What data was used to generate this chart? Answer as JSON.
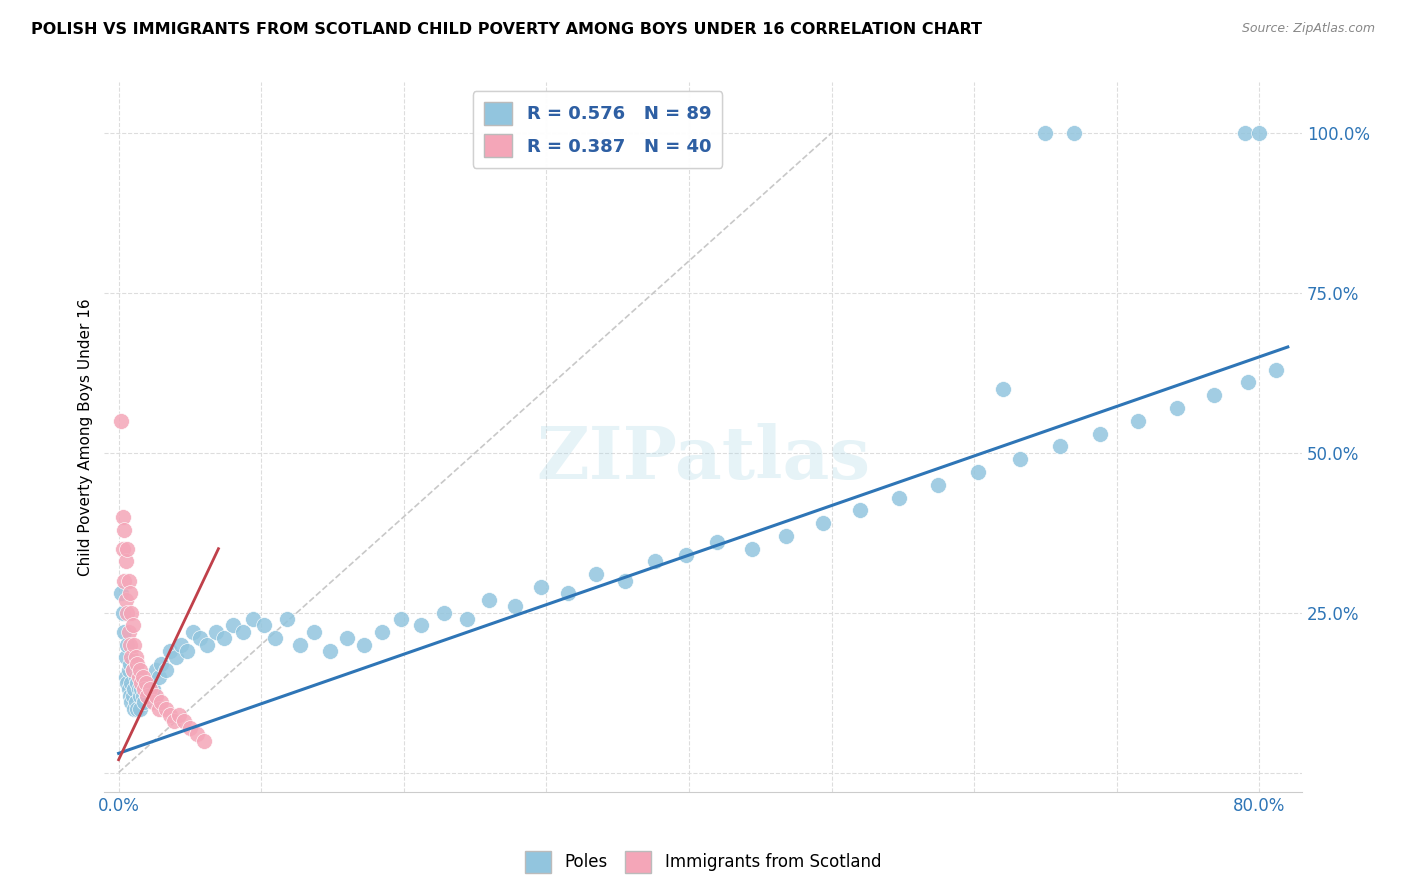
{
  "title": "POLISH VS IMMIGRANTS FROM SCOTLAND CHILD POVERTY AMONG BOYS UNDER 16 CORRELATION CHART",
  "source": "Source: ZipAtlas.com",
  "ylabel_label": "Child Poverty Among Boys Under 16",
  "x_tick_pos": [
    0.0,
    0.1,
    0.2,
    0.3,
    0.4,
    0.5,
    0.6,
    0.7,
    0.8
  ],
  "x_tick_labels": [
    "0.0%",
    "",
    "",
    "",
    "",
    "",
    "",
    "",
    "80.0%"
  ],
  "y_tick_pos": [
    0.0,
    0.25,
    0.5,
    0.75,
    1.0
  ],
  "y_tick_labels": [
    "",
    "25.0%",
    "50.0%",
    "75.0%",
    "100.0%"
  ],
  "poles_R": 0.576,
  "poles_N": 89,
  "scotland_R": 0.387,
  "scotland_N": 40,
  "poles_color": "#92C5DE",
  "poles_line_color": "#2E75B6",
  "scotland_color": "#F4A6B8",
  "scotland_line_color": "#C0404A",
  "legend_text_color": "#2E5FA3",
  "watermark_text": "ZIPatlas",
  "poles_x": [
    0.002,
    0.003,
    0.004,
    0.005,
    0.005,
    0.006,
    0.006,
    0.007,
    0.007,
    0.008,
    0.008,
    0.009,
    0.009,
    0.01,
    0.01,
    0.011,
    0.011,
    0.012,
    0.012,
    0.013,
    0.013,
    0.014,
    0.015,
    0.015,
    0.016,
    0.017,
    0.018,
    0.019,
    0.02,
    0.022,
    0.024,
    0.026,
    0.028,
    0.03,
    0.033,
    0.036,
    0.04,
    0.044,
    0.048,
    0.052,
    0.057,
    0.062,
    0.068,
    0.074,
    0.08,
    0.087,
    0.094,
    0.102,
    0.11,
    0.118,
    0.127,
    0.137,
    0.148,
    0.16,
    0.172,
    0.185,
    0.198,
    0.212,
    0.228,
    0.244,
    0.26,
    0.278,
    0.296,
    0.315,
    0.335,
    0.355,
    0.376,
    0.398,
    0.42,
    0.444,
    0.468,
    0.494,
    0.52,
    0.547,
    0.575,
    0.603,
    0.632,
    0.66,
    0.688,
    0.715,
    0.742,
    0.768,
    0.792,
    0.812,
    0.62,
    0.65,
    0.67,
    0.79,
    0.8
  ],
  "poles_y": [
    0.28,
    0.25,
    0.22,
    0.18,
    0.15,
    0.2,
    0.14,
    0.16,
    0.13,
    0.17,
    0.12,
    0.14,
    0.11,
    0.16,
    0.12,
    0.13,
    0.1,
    0.15,
    0.11,
    0.14,
    0.1,
    0.13,
    0.12,
    0.1,
    0.13,
    0.12,
    0.11,
    0.13,
    0.12,
    0.14,
    0.13,
    0.16,
    0.15,
    0.17,
    0.16,
    0.19,
    0.18,
    0.2,
    0.19,
    0.22,
    0.21,
    0.2,
    0.22,
    0.21,
    0.23,
    0.22,
    0.24,
    0.23,
    0.21,
    0.24,
    0.2,
    0.22,
    0.19,
    0.21,
    0.2,
    0.22,
    0.24,
    0.23,
    0.25,
    0.24,
    0.27,
    0.26,
    0.29,
    0.28,
    0.31,
    0.3,
    0.33,
    0.34,
    0.36,
    0.35,
    0.37,
    0.39,
    0.41,
    0.43,
    0.45,
    0.47,
    0.49,
    0.51,
    0.53,
    0.55,
    0.57,
    0.59,
    0.61,
    0.63,
    0.6,
    1.0,
    1.0,
    1.0,
    1.0
  ],
  "scotland_x": [
    0.002,
    0.003,
    0.003,
    0.004,
    0.004,
    0.005,
    0.005,
    0.006,
    0.006,
    0.007,
    0.007,
    0.008,
    0.008,
    0.009,
    0.009,
    0.01,
    0.01,
    0.011,
    0.012,
    0.013,
    0.014,
    0.015,
    0.016,
    0.017,
    0.018,
    0.019,
    0.02,
    0.022,
    0.024,
    0.026,
    0.028,
    0.03,
    0.033,
    0.036,
    0.039,
    0.042,
    0.046,
    0.05,
    0.055,
    0.06
  ],
  "scotland_y": [
    0.55,
    0.4,
    0.35,
    0.38,
    0.3,
    0.33,
    0.27,
    0.35,
    0.25,
    0.3,
    0.22,
    0.28,
    0.2,
    0.25,
    0.18,
    0.23,
    0.16,
    0.2,
    0.18,
    0.17,
    0.15,
    0.16,
    0.14,
    0.15,
    0.13,
    0.14,
    0.12,
    0.13,
    0.11,
    0.12,
    0.1,
    0.11,
    0.1,
    0.09,
    0.08,
    0.09,
    0.08,
    0.07,
    0.06,
    0.05
  ],
  "diag_line_x": [
    0.0,
    0.5
  ],
  "diag_line_y": [
    0.0,
    1.0
  ]
}
